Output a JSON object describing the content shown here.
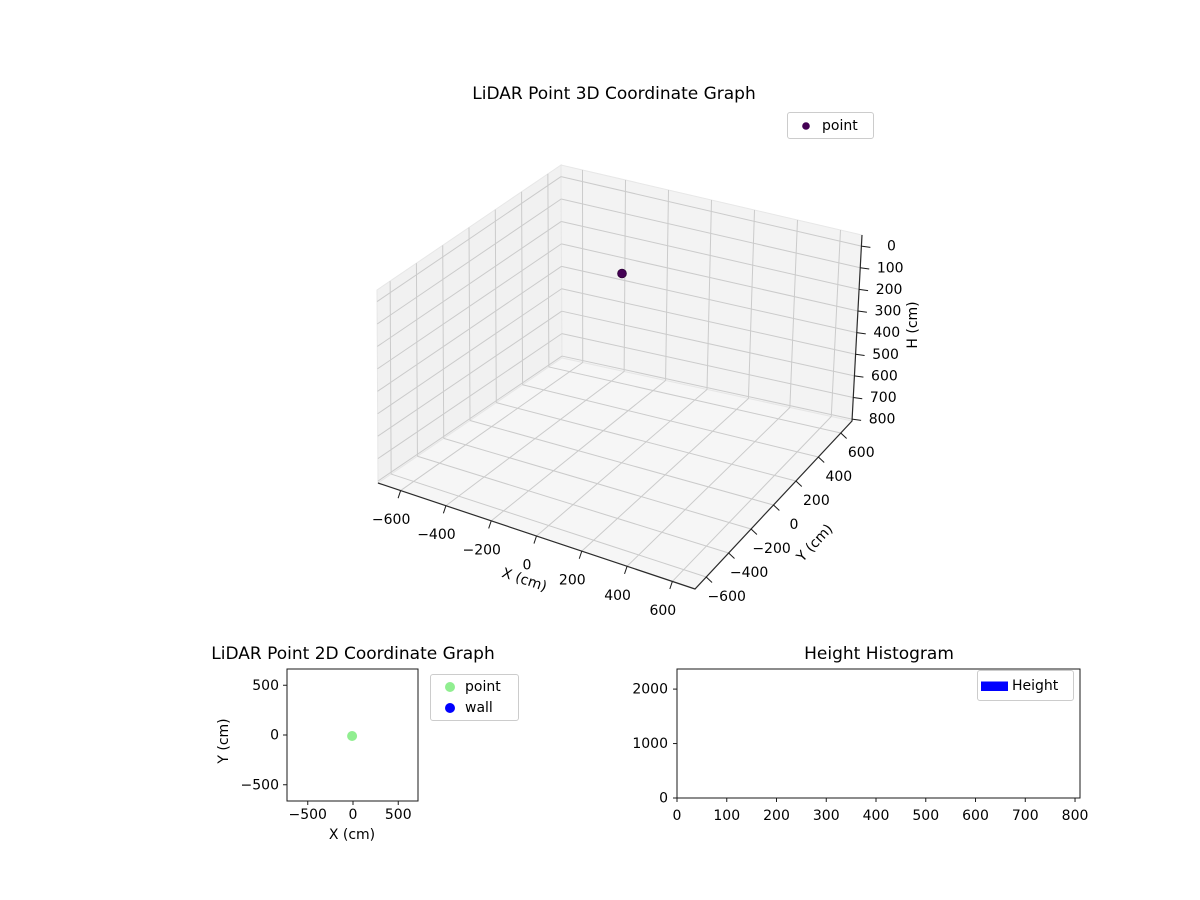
{
  "chart_data": [
    {
      "type": "scatter",
      "projection": "3d",
      "title": "LiDAR Point 3D Coordinate Graph",
      "xlabel": "X (cm)",
      "ylabel": "Y (cm)",
      "zlabel": "H (cm)",
      "x_ticks": [
        -600,
        -400,
        -200,
        0,
        200,
        400,
        600
      ],
      "y_ticks": [
        -600,
        -400,
        -200,
        0,
        200,
        400,
        600
      ],
      "z_ticks": [
        0,
        100,
        200,
        300,
        400,
        500,
        600,
        700,
        800
      ],
      "xlim": [
        -700,
        700
      ],
      "ylim": [
        -700,
        700
      ],
      "zlim": [
        0,
        800
      ],
      "z_axis_inverted": true,
      "grid": true,
      "legend_position": "upper right",
      "legend": [
        {
          "label": "point",
          "color": "#440154",
          "marker": "dot"
        }
      ],
      "series": [
        {
          "name": "point",
          "color": "#440154",
          "points": [
            {
              "x": 0,
              "y": 0,
              "h": 120
            }
          ]
        }
      ]
    },
    {
      "type": "scatter",
      "title": "LiDAR Point 2D Coordinate Graph",
      "xlabel": "X (cm)",
      "ylabel": "Y (cm)",
      "x_ticks": [
        -500,
        0,
        500
      ],
      "y_ticks": [
        500,
        0,
        -500
      ],
      "xlim": [
        -730,
        730
      ],
      "ylim": [
        -665,
        665
      ],
      "grid": false,
      "legend_position": "right of axes",
      "legend": [
        {
          "label": "point",
          "color": "#90ee90",
          "marker": "dot"
        },
        {
          "label": "wall",
          "color": "#0000ff",
          "marker": "dot"
        }
      ],
      "series": [
        {
          "name": "point",
          "color": "#90ee90",
          "points": [
            [
              -10,
              -10
            ]
          ]
        },
        {
          "name": "wall",
          "color": "#0000ff",
          "points": []
        }
      ]
    },
    {
      "type": "bar",
      "subtype": "histogram",
      "title": "Height Histogram",
      "xlabel": "",
      "ylabel": "",
      "x_ticks": [
        0,
        100,
        200,
        300,
        400,
        500,
        600,
        700,
        800
      ],
      "y_ticks": [
        0,
        1000,
        2000
      ],
      "xlim": [
        0,
        810
      ],
      "ylim": [
        0,
        2350
      ],
      "grid": false,
      "legend_position": "upper right",
      "legend": [
        {
          "label": "Height",
          "color": "#0000ff",
          "marker": "rect"
        }
      ],
      "values": [],
      "note_visible_bars": "none"
    }
  ]
}
